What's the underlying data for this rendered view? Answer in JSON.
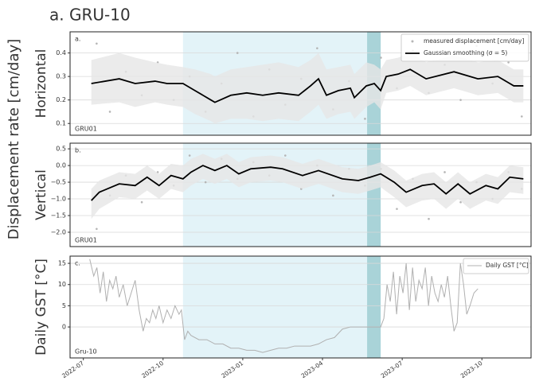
{
  "figure": {
    "title": "a.   GRU-10",
    "ylabel": "Displacement rate [cm/day]",
    "xlim": [
      -0.5,
      16.85
    ],
    "xticks": [
      {
        "value": 0,
        "label": "2022-07"
      },
      {
        "value": 3,
        "label": "2022-10"
      },
      {
        "value": 6,
        "label": "2023-01"
      },
      {
        "value": 9,
        "label": "2023-04"
      },
      {
        "value": 12,
        "label": "2023-07"
      },
      {
        "value": 15,
        "label": "2023-10"
      }
    ],
    "shaded_periods": [
      {
        "range": [
          3.75,
          11.19
        ],
        "color": "#e3f3f8"
      },
      {
        "range": [
          10.68,
          11.19
        ],
        "color": "#a9d3d8"
      }
    ]
  },
  "chart_data": [
    {
      "type": "line",
      "panel_label": "a.",
      "station": "GRU01",
      "ylabel": "Horizontal",
      "legend": "upper right",
      "grid": true,
      "ylim": [
        0.05,
        0.49
      ],
      "yticks": [
        0.1,
        0.2,
        0.3,
        0.4
      ],
      "series": [
        {
          "name": "measured displacement [cm/day]",
          "kind": "scatter",
          "color": "#b5b5b5",
          "x": [
            0.5,
            1.0,
            1.6,
            2.2,
            2.8,
            3.4,
            4.0,
            4.6,
            5.2,
            5.8,
            6.4,
            7.0,
            7.6,
            8.2,
            8.8,
            9.4,
            10.0,
            10.6,
            11.2,
            11.8,
            12.4,
            13.0,
            13.6,
            14.2,
            14.8,
            15.4,
            16.0,
            16.5
          ],
          "values": [
            0.44,
            0.15,
            0.32,
            0.22,
            0.36,
            0.2,
            0.3,
            0.15,
            0.27,
            0.4,
            0.13,
            0.33,
            0.18,
            0.29,
            0.42,
            0.16,
            0.28,
            0.12,
            0.38,
            0.25,
            0.41,
            0.23,
            0.35,
            0.2,
            0.43,
            0.27,
            0.36,
            0.13
          ]
        },
        {
          "name": "Gaussian smoothing (σ = 5)",
          "kind": "line",
          "color": "#000000",
          "band_color": "#e6e6e6",
          "x": [
            0.3,
            1.35,
            1.95,
            2.7,
            3.15,
            3.75,
            4.2,
            4.8,
            4.95,
            5.55,
            6.15,
            6.75,
            7.35,
            8.1,
            8.55,
            8.85,
            9.15,
            9.6,
            10.05,
            10.2,
            10.65,
            10.95,
            11.19,
            11.4,
            11.85,
            12.3,
            12.9,
            13.95,
            14.85,
            15.6,
            16.2,
            16.56
          ],
          "values": [
            0.27,
            0.29,
            0.27,
            0.28,
            0.27,
            0.27,
            0.24,
            0.2,
            0.19,
            0.22,
            0.23,
            0.22,
            0.23,
            0.22,
            0.26,
            0.29,
            0.22,
            0.24,
            0.25,
            0.21,
            0.26,
            0.27,
            0.24,
            0.3,
            0.31,
            0.33,
            0.29,
            0.32,
            0.29,
            0.3,
            0.26,
            0.26
          ],
          "upper": [
            0.37,
            0.4,
            0.38,
            0.36,
            0.35,
            0.34,
            0.33,
            0.31,
            0.3,
            0.33,
            0.34,
            0.35,
            0.36,
            0.34,
            0.37,
            0.4,
            0.33,
            0.34,
            0.35,
            0.31,
            0.36,
            0.35,
            0.33,
            0.37,
            0.38,
            0.4,
            0.36,
            0.39,
            0.36,
            0.37,
            0.33,
            0.33
          ],
          "lower": [
            0.18,
            0.19,
            0.17,
            0.19,
            0.18,
            0.17,
            0.14,
            0.11,
            0.1,
            0.12,
            0.12,
            0.11,
            0.12,
            0.11,
            0.15,
            0.18,
            0.12,
            0.14,
            0.15,
            0.12,
            0.17,
            0.19,
            0.16,
            0.23,
            0.24,
            0.26,
            0.22,
            0.25,
            0.22,
            0.23,
            0.19,
            0.19
          ]
        }
      ]
    },
    {
      "type": "line",
      "panel_label": "b.",
      "station": "GRU01",
      "ylabel": "Vertical",
      "grid": true,
      "ylim": [
        -2.43,
        0.67
      ],
      "yticks": [
        0.5,
        {
          "value": 0,
          "label": "0.0"
        },
        {
          "value": -0.5,
          "label": "−0.5"
        },
        {
          "value": -1,
          "label": "−1.0"
        },
        {
          "value": -1.5,
          "label": "−1.5"
        },
        {
          "value": -2,
          "label": "−2.0"
        }
      ],
      "series": [
        {
          "name": "measured displacement [cm/day]",
          "kind": "scatter",
          "color": "#b5b5b5",
          "x": [
            0.5,
            1.0,
            1.6,
            2.2,
            2.8,
            3.4,
            4.0,
            4.6,
            5.2,
            5.8,
            6.4,
            7.0,
            7.6,
            8.2,
            8.8,
            9.4,
            10.0,
            10.6,
            11.2,
            11.8,
            12.4,
            13.0,
            13.6,
            14.2,
            14.8,
            15.4,
            16.0,
            16.5
          ],
          "values": [
            -1.9,
            -0.9,
            -0.3,
            -1.1,
            -0.2,
            -0.6,
            0.3,
            -0.5,
            0.2,
            -0.4,
            0.1,
            -0.3,
            0.3,
            -0.7,
            0.0,
            -0.9,
            -0.1,
            -0.6,
            -0.1,
            -1.3,
            -0.4,
            -1.6,
            -0.2,
            -1.1,
            -0.5,
            -1.0,
            -0.2,
            -0.7
          ]
        },
        {
          "name": "Gaussian smoothing (σ = 5)",
          "kind": "line",
          "color": "#000000",
          "band_color": "#e6e6e6",
          "x": [
            0.3,
            0.6,
            1.35,
            1.95,
            2.4,
            2.85,
            3.3,
            3.75,
            4.05,
            4.5,
            4.95,
            5.4,
            5.85,
            6.3,
            7.05,
            7.5,
            8.25,
            8.85,
            9.75,
            10.35,
            10.8,
            11.19,
            11.7,
            12.15,
            12.75,
            13.2,
            13.65,
            14.1,
            14.55,
            15.15,
            15.6,
            16.05,
            16.56
          ],
          "values": [
            -1.05,
            -0.8,
            -0.55,
            -0.6,
            -0.35,
            -0.6,
            -0.3,
            -0.4,
            -0.2,
            0.0,
            -0.15,
            0.0,
            -0.25,
            -0.1,
            -0.05,
            -0.1,
            -0.3,
            -0.15,
            -0.4,
            -0.45,
            -0.35,
            -0.25,
            -0.5,
            -0.8,
            -0.6,
            -0.55,
            -0.85,
            -0.55,
            -0.85,
            -0.6,
            -0.7,
            -0.35,
            -0.4
          ],
          "upper": [
            -0.7,
            -0.45,
            -0.2,
            -0.25,
            0.0,
            -0.25,
            0.05,
            0.0,
            0.2,
            0.35,
            0.2,
            0.35,
            0.1,
            0.25,
            0.3,
            0.25,
            0.05,
            0.2,
            -0.05,
            -0.1,
            0.0,
            0.1,
            -0.15,
            -0.45,
            -0.25,
            -0.2,
            -0.5,
            -0.2,
            -0.5,
            -0.25,
            -0.35,
            0.0,
            -0.05
          ],
          "lower": [
            -1.6,
            -1.3,
            -0.95,
            -1.0,
            -0.75,
            -1.0,
            -0.7,
            -0.8,
            -0.6,
            -0.4,
            -0.55,
            -0.4,
            -0.65,
            -0.5,
            -0.45,
            -0.5,
            -0.7,
            -0.55,
            -0.8,
            -0.85,
            -0.75,
            -0.65,
            -0.95,
            -1.25,
            -1.05,
            -1.0,
            -1.3,
            -1.0,
            -1.3,
            -1.05,
            -1.15,
            -0.8,
            -0.85
          ]
        }
      ]
    },
    {
      "type": "line",
      "panel_label": "c.",
      "station": "Gru-10",
      "ylabel": "Daily GST [°C]",
      "legend": "upper right",
      "grid": true,
      "ylim": [
        -7.3,
        16.7
      ],
      "yticks": [
        0,
        5,
        10,
        15
      ],
      "series": [
        {
          "name": "Daily GST [°C]",
          "kind": "line",
          "color": "#b0b0b0",
          "x": [
            0.24,
            0.39,
            0.51,
            0.63,
            0.75,
            0.87,
            0.99,
            1.11,
            1.23,
            1.35,
            1.5,
            1.65,
            1.8,
            1.95,
            2.1,
            2.25,
            2.37,
            2.49,
            2.61,
            2.73,
            2.85,
            3.0,
            3.15,
            3.3,
            3.45,
            3.6,
            3.69,
            3.81,
            3.93,
            4.05,
            4.35,
            4.65,
            4.95,
            5.25,
            5.55,
            5.85,
            6.15,
            6.45,
            6.75,
            7.05,
            7.35,
            7.65,
            7.95,
            8.25,
            8.55,
            8.85,
            9.15,
            9.45,
            9.75,
            10.05,
            10.65,
            11.19,
            11.31,
            11.43,
            11.55,
            11.67,
            11.79,
            11.91,
            12.03,
            12.15,
            12.27,
            12.39,
            12.51,
            12.63,
            12.75,
            12.87,
            12.99,
            13.11,
            13.23,
            13.35,
            13.47,
            13.59,
            13.71,
            13.83,
            13.95,
            14.07,
            14.19,
            14.31,
            14.43,
            14.55,
            14.7,
            14.85
          ],
          "values": [
            16,
            12,
            14,
            8,
            13,
            6,
            11,
            9,
            12,
            7,
            10,
            5,
            8,
            11,
            4,
            -1,
            2,
            1,
            4,
            2,
            5,
            1,
            4,
            2,
            5,
            3,
            4,
            -3,
            -1,
            -2,
            -3,
            -3,
            -4,
            -4,
            -5,
            -5,
            -5.5,
            -5.5,
            -6,
            -5.5,
            -5,
            -5,
            -4.5,
            -4.5,
            -4.5,
            -4,
            -3,
            -2.5,
            -0.5,
            0,
            0,
            0,
            2,
            10,
            6,
            13,
            3,
            12,
            8,
            15,
            4,
            14,
            6,
            11,
            9,
            14,
            5,
            12,
            8,
            6,
            10,
            7,
            12,
            5,
            -1,
            1,
            15,
            10,
            3,
            5,
            8,
            9
          ]
        }
      ]
    }
  ]
}
